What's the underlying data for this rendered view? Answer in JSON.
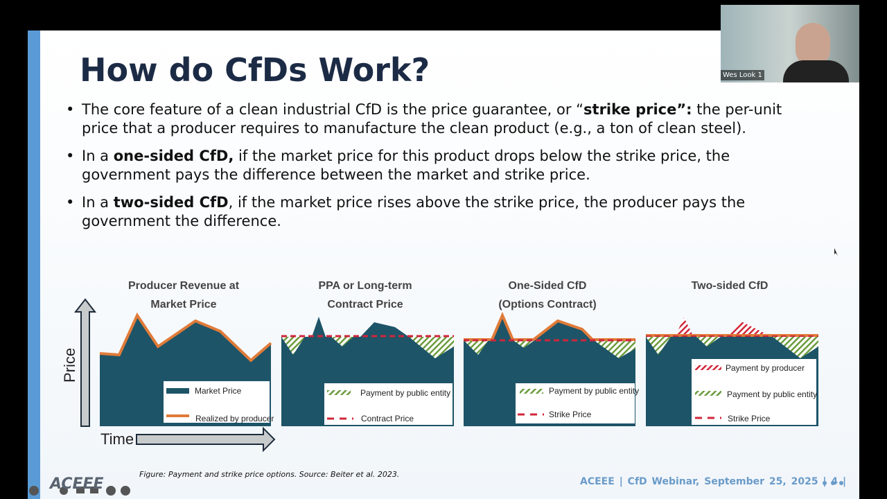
{
  "call": {
    "participant_name": "Wes Look 1"
  },
  "slide": {
    "title": "How do CfDs Work?",
    "bullets": [
      [
        {
          "text": "The core feature of a clean industrial CfD is the price guarantee, or “",
          "bold": false
        },
        {
          "text": "strike price”:",
          "bold": true
        },
        {
          "text": " the per-unit price that a producer requires to manufacture the clean product (e.g., a ton of clean steel).",
          "bold": false
        }
      ],
      [
        {
          "text": "In a ",
          "bold": false
        },
        {
          "text": "one-sided CfD,",
          "bold": true
        },
        {
          "text": " if the market price for this product drops below the strike price, the government pays the difference between the market and strike price.",
          "bold": false
        }
      ],
      [
        {
          "text": "In a ",
          "bold": false
        },
        {
          "text": "two-sided CfD",
          "bold": true
        },
        {
          "text": ", if the market price rises above the strike price, the producer pays the government the difference.",
          "bold": false
        }
      ]
    ],
    "figure": {
      "y_axis_label": "Price",
      "x_axis_label": "Time",
      "panels": [
        {
          "title": [
            "Producer Revenue at",
            "Market Price"
          ],
          "legend": [
            "Market Price",
            "Realized by producer"
          ]
        },
        {
          "title": [
            "PPA or Long-term",
            "Contract Price"
          ],
          "legend": [
            "Payment by public entity",
            "Contract Price"
          ]
        },
        {
          "title": [
            "One-Sided CfD",
            "(Options Contract)"
          ],
          "legend": [
            "Payment by public entity",
            "Strike Price"
          ]
        },
        {
          "title": [
            "Two-sided CfD"
          ],
          "legend": [
            "Payment by producer",
            "Payment by public entity",
            "Strike Price"
          ]
        }
      ],
      "caption": "Figure: Payment and strike price options. Source: Beiter et al. 2023."
    },
    "logo": "ACEEE",
    "footer": {
      "org": "ACEEE",
      "event": "| CfD Webinar, September 25, 2025 |",
      "page": "4",
      "separator": "|"
    }
  }
}
